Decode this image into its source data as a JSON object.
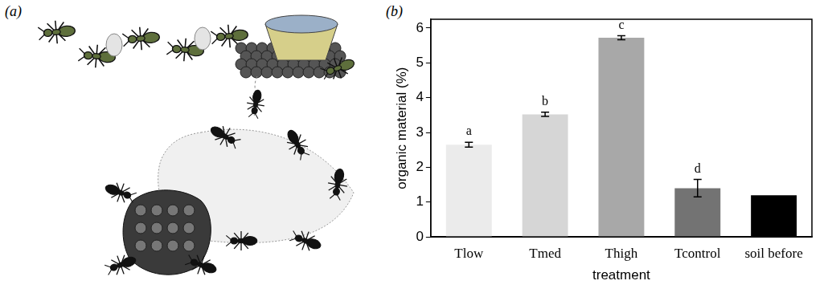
{
  "panels": [
    {
      "label": "(a)"
    },
    {
      "label": "(b)"
    }
  ],
  "chart_data": {
    "type": "bar",
    "x_label": "treatment",
    "y_label": "organic material (%)",
    "categories": [
      "Tlow",
      "Tmed",
      "Thigh",
      "Tcontrol",
      "soil before"
    ],
    "values": [
      2.65,
      3.52,
      5.72,
      1.4,
      1.2
    ],
    "error_bars": [
      0.07,
      0.06,
      0.06,
      0.25,
      null
    ],
    "colors": [
      "#ebebeb",
      "#d6d6d6",
      "#a8a8a8",
      "#737373",
      "#000000"
    ],
    "annotations": [
      {
        "category": "Tlow",
        "text": "a"
      },
      {
        "category": "Tmed",
        "text": "b"
      },
      {
        "category": "Thigh",
        "text": "c"
      },
      {
        "category": "Tcontrol",
        "text": "d"
      }
    ],
    "ylim": [
      0,
      6.25
    ],
    "yticks": [
      0,
      1,
      2,
      3,
      4,
      5,
      6
    ],
    "grid": false
  }
}
